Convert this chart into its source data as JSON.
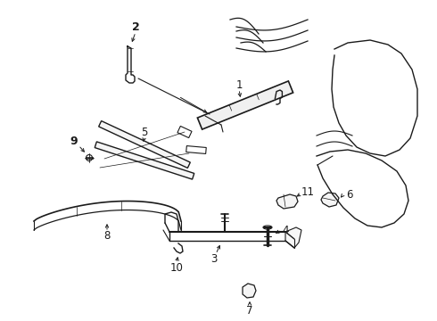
{
  "background_color": "#ffffff",
  "line_color": "#1a1a1a",
  "figsize": [
    4.9,
    3.6
  ],
  "dpi": 100
}
